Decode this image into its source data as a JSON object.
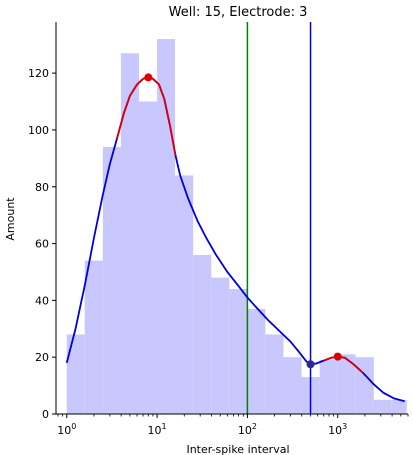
{
  "chart_data": {
    "type": "histogram",
    "title": "Well: 15, Electrode: 3",
    "xlabel": "Inter-spike interval",
    "ylabel": "Amount",
    "xscale": "log",
    "xlim": [
      0.76,
      6000
    ],
    "ylim": [
      0,
      138
    ],
    "x_ticks": [
      {
        "value": 1,
        "base": "10",
        "exp": "0"
      },
      {
        "value": 10,
        "base": "10",
        "exp": "1"
      },
      {
        "value": 100,
        "base": "10",
        "exp": "2"
      },
      {
        "value": 1000,
        "base": "10",
        "exp": "3"
      }
    ],
    "y_ticks": [
      0,
      20,
      40,
      60,
      80,
      100,
      120
    ],
    "histogram": {
      "color": "#c8c8ff",
      "bins": [
        {
          "x0": 1.0,
          "x1": 1.58,
          "count": 28
        },
        {
          "x0": 1.58,
          "x1": 2.51,
          "count": 54
        },
        {
          "x0": 2.51,
          "x1": 3.98,
          "count": 94
        },
        {
          "x0": 3.98,
          "x1": 6.31,
          "count": 127
        },
        {
          "x0": 6.31,
          "x1": 10.0,
          "count": 110
        },
        {
          "x0": 10.0,
          "x1": 15.8,
          "count": 132
        },
        {
          "x0": 15.8,
          "x1": 25.1,
          "count": 84
        },
        {
          "x0": 25.1,
          "x1": 39.8,
          "count": 56
        },
        {
          "x0": 39.8,
          "x1": 63.1,
          "count": 48
        },
        {
          "x0": 63.1,
          "x1": 100.0,
          "count": 44
        },
        {
          "x0": 100.0,
          "x1": 158,
          "count": 37
        },
        {
          "x0": 158,
          "x1": 251,
          "count": 28
        },
        {
          "x0": 251,
          "x1": 398,
          "count": 20
        },
        {
          "x0": 398,
          "x1": 631,
          "count": 13
        },
        {
          "x0": 631,
          "x1": 1000,
          "count": 19
        },
        {
          "x0": 1000,
          "x1": 1580,
          "count": 21
        },
        {
          "x0": 1580,
          "x1": 2510,
          "count": 20
        },
        {
          "x0": 2510,
          "x1": 3980,
          "count": 5
        },
        {
          "x0": 3980,
          "x1": 5800,
          "count": 5
        }
      ]
    },
    "kde_curve": {
      "color": "#0000dd",
      "highlight_color": "#dd0000",
      "points": [
        [
          1.0,
          18
        ],
        [
          1.25,
          30
        ],
        [
          1.6,
          46
        ],
        [
          2.0,
          62
        ],
        [
          2.5,
          77
        ],
        [
          3.0,
          88
        ],
        [
          3.6,
          97
        ],
        [
          4.3,
          106
        ],
        [
          5.0,
          112
        ],
        [
          6.0,
          116
        ],
        [
          7.0,
          118
        ],
        [
          8.0,
          118.5
        ],
        [
          9.0,
          118
        ],
        [
          10.5,
          116
        ],
        [
          12.0,
          111
        ],
        [
          14.0,
          101
        ],
        [
          16.0,
          91
        ],
        [
          18.0,
          84
        ],
        [
          22.0,
          76
        ],
        [
          28.0,
          68
        ],
        [
          35.0,
          62
        ],
        [
          45.0,
          56
        ],
        [
          60.0,
          50
        ],
        [
          80.0,
          45
        ],
        [
          100.0,
          41
        ],
        [
          130.0,
          37
        ],
        [
          170.0,
          33
        ],
        [
          230.0,
          29
        ],
        [
          300.0,
          25.5
        ],
        [
          380.0,
          21.5
        ],
        [
          450.0,
          18.5
        ],
        [
          500.0,
          17.5
        ],
        [
          580.0,
          17.8
        ],
        [
          700.0,
          18.8
        ],
        [
          850.0,
          19.8
        ],
        [
          1000.0,
          20.2
        ],
        [
          1200.0,
          19.8
        ],
        [
          1500.0,
          17.5
        ],
        [
          1900.0,
          14.5
        ],
        [
          2500.0,
          10.5
        ],
        [
          3200.0,
          7.5
        ],
        [
          4200.0,
          5.5
        ],
        [
          5500.0,
          4.5
        ]
      ],
      "highlight_ranges": [
        [
          3.2,
          17.0
        ],
        [
          650.0,
          2200.0
        ]
      ]
    },
    "peak_markers": [
      {
        "x": 8.0,
        "y": 118.5,
        "color": "#dd0000"
      },
      {
        "x": 1000.0,
        "y": 20.2,
        "color": "#dd0000"
      }
    ],
    "valley_markers": [
      {
        "x": 500.0,
        "y": 17.5,
        "color": "#2a2a8a"
      }
    ],
    "vertical_lines": [
      {
        "x": 100.0,
        "color": "#008000"
      },
      {
        "x": 500.0,
        "color": "#0000dd"
      }
    ]
  }
}
